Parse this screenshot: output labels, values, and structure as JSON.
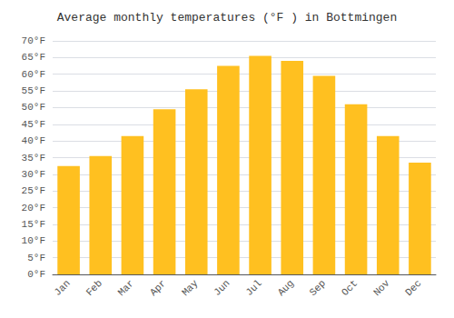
{
  "chart_data": {
    "type": "bar",
    "title": "Average monthly temperatures (°F ) in Bottmingen",
    "categories": [
      "Jan",
      "Feb",
      "Mar",
      "Apr",
      "May",
      "Jun",
      "Jul",
      "Aug",
      "Sep",
      "Oct",
      "Nov",
      "Dec"
    ],
    "values": [
      32.5,
      35.5,
      41.5,
      49.5,
      55.5,
      62.5,
      65.5,
      64.0,
      59.5,
      51.0,
      41.5,
      33.5
    ],
    "color": "#FFC020",
    "ylim": [
      0,
      70
    ],
    "yticks": [
      {
        "value": 0,
        "label": "0°F"
      },
      {
        "value": 5,
        "label": "5°F"
      },
      {
        "value": 10,
        "label": "10°F"
      },
      {
        "value": 15,
        "label": "15°F"
      },
      {
        "value": 20,
        "label": "20°F"
      },
      {
        "value": 25,
        "label": "25°F"
      },
      {
        "value": 30,
        "label": "30°F"
      },
      {
        "value": 35,
        "label": "35°F"
      },
      {
        "value": 40,
        "label": "40°F"
      },
      {
        "value": 45,
        "label": "45°F"
      },
      {
        "value": 50,
        "label": "50°F"
      },
      {
        "value": 55,
        "label": "55°F"
      },
      {
        "value": 60,
        "label": "60°F"
      },
      {
        "value": 65,
        "label": "65°F"
      },
      {
        "value": 70,
        "label": "70°F"
      }
    ],
    "grid": true
  }
}
